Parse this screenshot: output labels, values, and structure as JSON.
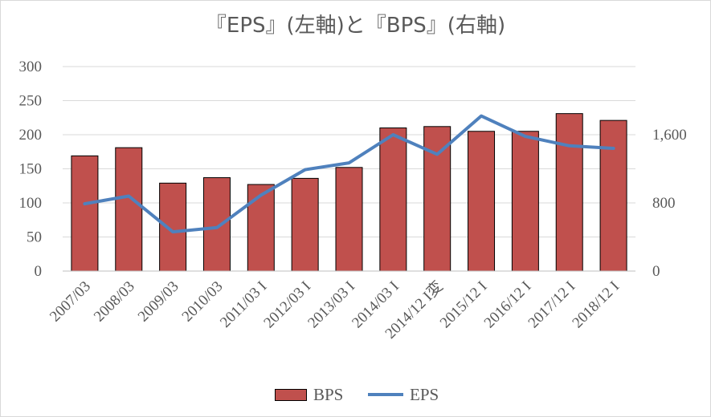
{
  "chart_data": {
    "type": "bar",
    "title": "『EPS』(左軸)と『BPS』(右軸)",
    "categories": [
      "2007/03",
      "2008/03",
      "2009/03",
      "2010/03",
      "2011/03 I",
      "2012/03 I",
      "2013/03 I",
      "2014/03 I",
      "2014/12 I変",
      "2015/12 I",
      "2016/12 I",
      "2017/12 I",
      "2018/12 I"
    ],
    "series": [
      {
        "name": "BPS",
        "type": "bar",
        "axis": "left",
        "color": "#c0504d",
        "values": [
          169,
          181,
          129,
          137,
          127,
          136,
          152,
          210,
          212,
          205,
          205,
          231,
          221
        ]
      },
      {
        "name": "EPS",
        "type": "line",
        "axis": "right",
        "color": "#4f81bd",
        "values": [
          790,
          880,
          460,
          510,
          890,
          1190,
          1270,
          1600,
          1370,
          1820,
          1580,
          1470,
          1440
        ]
      }
    ],
    "y_left": {
      "ticks": [
        "0",
        "50",
        "100",
        "150",
        "200",
        "250",
        "300"
      ],
      "ylim": [
        0,
        300
      ]
    },
    "y_right": {
      "ticks": [
        "0",
        "800",
        "1,600"
      ],
      "ylim": [
        0,
        2400
      ]
    },
    "grid": true,
    "legend_position": "bottom"
  }
}
